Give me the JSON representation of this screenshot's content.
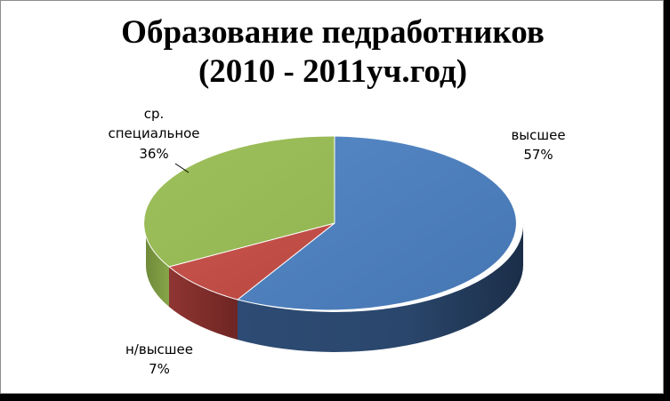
{
  "chart_data": {
    "type": "pie",
    "title_lines": [
      "Образование педработников",
      "(2010 - 2011уч.год)"
    ],
    "slices": [
      {
        "name": "высшее",
        "percent_label": "57%",
        "value": 57,
        "color": "#4f81bd"
      },
      {
        "name": "н/высшее",
        "percent_label": "7%",
        "value": 7,
        "color": "#c0504d"
      },
      {
        "name_lines": [
          "ср.",
          "специальное"
        ],
        "percent_label": "36%",
        "value": 36,
        "color": "#9bbb59"
      }
    ],
    "style": "3d",
    "legend": "none",
    "data_labels": "outside, category name and percentage"
  }
}
